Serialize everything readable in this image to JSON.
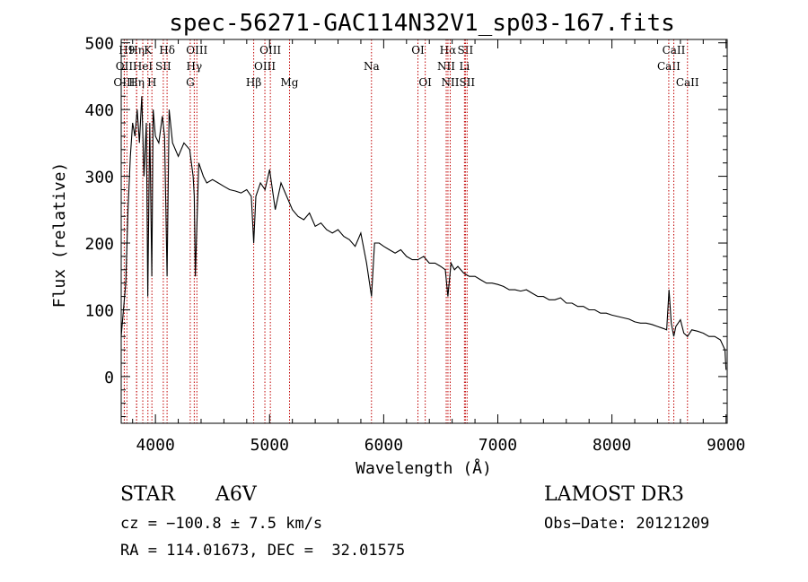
{
  "chart_data": {
    "type": "line",
    "title": "spec-56271-GAC114N32V1_sp03-167.fits",
    "xlabel": "Wavelength (Å)",
    "ylabel": "Flux (relative)",
    "xlim": [
      3700,
      9010
    ],
    "ylim": [
      -70,
      505
    ],
    "xticks": [
      4000,
      5000,
      6000,
      7000,
      8000,
      9000
    ],
    "yticks": [
      0,
      100,
      200,
      300,
      400,
      500
    ],
    "spectrum": {
      "x": [
        3700,
        3720,
        3740,
        3760,
        3780,
        3800,
        3820,
        3840,
        3860,
        3880,
        3900,
        3920,
        3933,
        3950,
        3968,
        3980,
        4000,
        4030,
        4060,
        4080,
        4102,
        4120,
        4150,
        4200,
        4250,
        4300,
        4330,
        4340,
        4350,
        4380,
        4420,
        4450,
        4500,
        4550,
        4600,
        4650,
        4700,
        4750,
        4800,
        4840,
        4861,
        4880,
        4920,
        4960,
        5000,
        5050,
        5100,
        5150,
        5200,
        5250,
        5300,
        5350,
        5400,
        5450,
        5500,
        5550,
        5600,
        5650,
        5700,
        5750,
        5800,
        5850,
        5893,
        5920,
        5960,
        6000,
        6050,
        6100,
        6150,
        6200,
        6250,
        6300,
        6350,
        6400,
        6450,
        6500,
        6540,
        6563,
        6590,
        6620,
        6650,
        6700,
        6750,
        6800,
        6850,
        6900,
        6950,
        7000,
        7050,
        7100,
        7150,
        7200,
        7250,
        7300,
        7350,
        7400,
        7450,
        7500,
        7550,
        7600,
        7650,
        7700,
        7750,
        7800,
        7850,
        7900,
        7950,
        8000,
        8050,
        8100,
        8150,
        8200,
        8250,
        8300,
        8350,
        8400,
        8450,
        8480,
        8500,
        8520,
        8542,
        8560,
        8600,
        8630,
        8662,
        8700,
        8750,
        8800,
        8850,
        8900,
        8950,
        8990,
        9000
      ],
      "y": [
        60,
        100,
        140,
        250,
        330,
        380,
        360,
        400,
        350,
        420,
        300,
        380,
        120,
        380,
        150,
        400,
        360,
        350,
        390,
        360,
        150,
        400,
        350,
        330,
        350,
        340,
        300,
        270,
        150,
        320,
        300,
        290,
        295,
        290,
        285,
        280,
        278,
        275,
        280,
        270,
        200,
        270,
        290,
        280,
        310,
        250,
        290,
        270,
        250,
        240,
        235,
        245,
        225,
        230,
        220,
        215,
        220,
        210,
        205,
        195,
        215,
        170,
        120,
        200,
        200,
        195,
        190,
        185,
        190,
        180,
        175,
        175,
        180,
        170,
        170,
        165,
        160,
        120,
        170,
        160,
        165,
        155,
        150,
        150,
        145,
        140,
        140,
        138,
        135,
        130,
        130,
        128,
        130,
        125,
        120,
        120,
        115,
        115,
        118,
        110,
        110,
        105,
        105,
        100,
        100,
        95,
        95,
        92,
        90,
        88,
        86,
        82,
        80,
        80,
        78,
        75,
        72,
        70,
        130,
        80,
        60,
        75,
        85,
        65,
        60,
        70,
        68,
        65,
        60,
        60,
        55,
        40,
        10
      ]
    },
    "lines": [
      {
        "name": "H9",
        "wl": 3750,
        "row": 0
      },
      {
        "name": "OII",
        "wl": 3727,
        "row": 1
      },
      {
        "name": "OIII",
        "wl": 3727,
        "row": 2
      },
      {
        "name": "Hη",
        "wl": 3835,
        "row": 0
      },
      {
        "name": "HeI",
        "wl": 3889,
        "row": 1
      },
      {
        "name": "Hη",
        "wl": 3835,
        "row": 2
      },
      {
        "name": "K",
        "wl": 3934,
        "row": 0
      },
      {
        "name": "SII",
        "wl": 4069,
        "row": 1
      },
      {
        "name": "H",
        "wl": 3969,
        "row": 2
      },
      {
        "name": "Hδ",
        "wl": 4102,
        "row": 0
      },
      {
        "name": "OIII",
        "wl": 4363,
        "row": 0
      },
      {
        "name": "Hγ",
        "wl": 4340,
        "row": 1
      },
      {
        "name": "G",
        "wl": 4305,
        "row": 2
      },
      {
        "name": "Hβ",
        "wl": 4861,
        "row": 2
      },
      {
        "name": "OIII",
        "wl": 5007,
        "row": 0
      },
      {
        "name": "OIII",
        "wl": 4959,
        "row": 1
      },
      {
        "name": "Mg",
        "wl": 5175,
        "row": 2
      },
      {
        "name": "Na",
        "wl": 5893,
        "row": 1
      },
      {
        "name": "OI",
        "wl": 6300,
        "row": 0
      },
      {
        "name": "OI",
        "wl": 6364,
        "row": 2
      },
      {
        "name": "Hα",
        "wl": 6563,
        "row": 0
      },
      {
        "name": "NII",
        "wl": 6548,
        "row": 1
      },
      {
        "name": "NII",
        "wl": 6583,
        "row": 2
      },
      {
        "name": "SII",
        "wl": 6716,
        "row": 0
      },
      {
        "name": "Li",
        "wl": 6708,
        "row": 1
      },
      {
        "name": "SII",
        "wl": 6731,
        "row": 2
      },
      {
        "name": "CaII",
        "wl": 8498,
        "row": 1
      },
      {
        "name": "CaII",
        "wl": 8542,
        "row": 0
      },
      {
        "name": "CaII",
        "wl": 8662,
        "row": 2
      }
    ]
  },
  "info": {
    "class": "STAR",
    "subclass": "A6V",
    "survey": "LAMOST DR3",
    "cz": "cz = −100.8 ± 7.5 km/s",
    "obsdate": "Obs−Date: 20121209",
    "radec": "RA = 114.01673, DEC =  32.01575"
  }
}
